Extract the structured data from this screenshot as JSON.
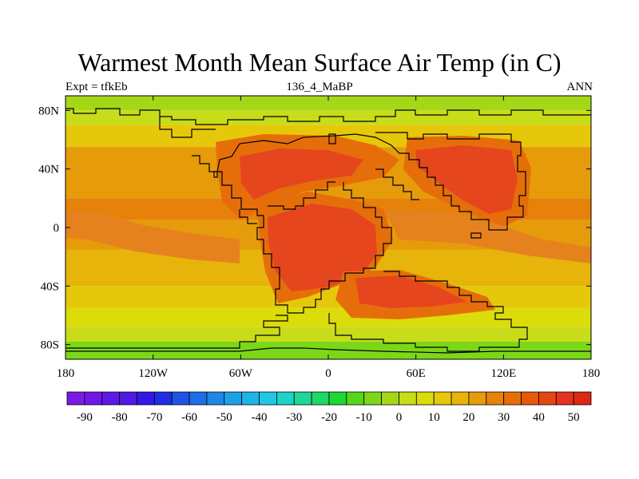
{
  "title": "Warmest Month Mean Surface Air Temp (in C)",
  "subtitle_left": "Expt = tfkEb",
  "subtitle_center": "136_4_MaBP",
  "subtitle_right": "ANN",
  "lat_labels": [
    "80N",
    "40N",
    "0",
    "40S",
    "80S"
  ],
  "lat_values": [
    80,
    40,
    0,
    -40,
    -80
  ],
  "lon_labels": [
    "180",
    "120W",
    "60W",
    "0",
    "60E",
    "120E",
    "180"
  ],
  "lon_values": [
    -180,
    -120,
    -60,
    0,
    60,
    120,
    180
  ],
  "colorbar": {
    "colors": [
      "#7d19e6",
      "#6e19e6",
      "#5f19e6",
      "#5019e6",
      "#3219e6",
      "#1e2ee6",
      "#1e55e6",
      "#1e6ee6",
      "#1e87e6",
      "#1ea0e6",
      "#1eb4e6",
      "#1ec8e6",
      "#1ed2c8",
      "#1ed796",
      "#1ed764",
      "#1ed732",
      "#55d719",
      "#7dd719",
      "#a5d719",
      "#c8dc19",
      "#dcdc0a",
      "#e6c80a",
      "#e6b40a",
      "#e69b0a",
      "#e6820a",
      "#e66e0a",
      "#e65a0a",
      "#e64614",
      "#e6321e",
      "#dc2814"
    ],
    "tick_labels": [
      "-90",
      "-80",
      "-70",
      "-60",
      "-50",
      "-40",
      "-30",
      "-20",
      "-10",
      "0",
      "10",
      "20",
      "30",
      "40",
      "50"
    ]
  },
  "map_bands": [
    {
      "lat": [
        80,
        90
      ],
      "color": "#a5d719"
    },
    {
      "lat": [
        70,
        80
      ],
      "color": "#c8dc19"
    },
    {
      "lat": [
        55,
        70
      ],
      "color": "#e6c80a"
    },
    {
      "lat": [
        20,
        55
      ],
      "color": "#e69b0a"
    },
    {
      "lat": [
        5,
        20
      ],
      "color": "#e6820a"
    },
    {
      "lat": [
        -15,
        5
      ],
      "color": "#e69b0a"
    },
    {
      "lat": [
        -40,
        -15
      ],
      "color": "#e6b40a"
    },
    {
      "lat": [
        -55,
        -40
      ],
      "color": "#e6c80a"
    },
    {
      "lat": [
        -68,
        -55
      ],
      "color": "#dcdc0a"
    },
    {
      "lat": [
        -78,
        -68
      ],
      "color": "#c8dc19"
    },
    {
      "lat": [
        -90,
        -78
      ],
      "color": "#7dd719"
    }
  ]
}
